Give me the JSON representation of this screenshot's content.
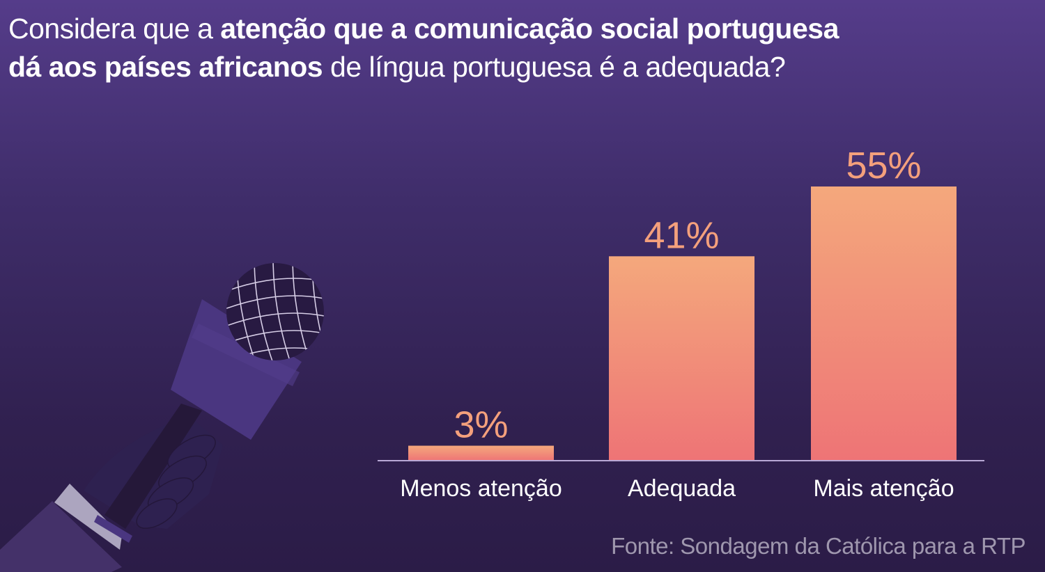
{
  "title": {
    "line1": [
      {
        "text": "Considera que a ",
        "bold": false
      },
      {
        "text": "atenção que a comunicação social portuguesa",
        "bold": true
      }
    ],
    "line2": [
      {
        "text": "dá aos países africanos",
        "bold": true
      },
      {
        "text": " de língua portuguesa é a adequada?",
        "bold": false
      }
    ]
  },
  "source": "Fonte: Sondagem da Católica para a RTP",
  "colors": {
    "bar_top": "#f4a87c",
    "bar_bottom": "#ee7476",
    "label": "#f4a07c",
    "axis": "#b9a9d6"
  },
  "chart_data": {
    "type": "bar",
    "title": "Considera que a atenção que a comunicação social portuguesa dá aos países africanos de língua portuguesa é a adequada?",
    "categories": [
      "Menos atenção",
      "Adequada",
      "Mais atenção"
    ],
    "values": [
      3,
      41,
      55
    ],
    "value_labels": [
      "3%",
      "41%",
      "55%"
    ],
    "xlabel": "",
    "ylabel": "",
    "ylim": [
      0,
      55
    ],
    "grid": false
  }
}
